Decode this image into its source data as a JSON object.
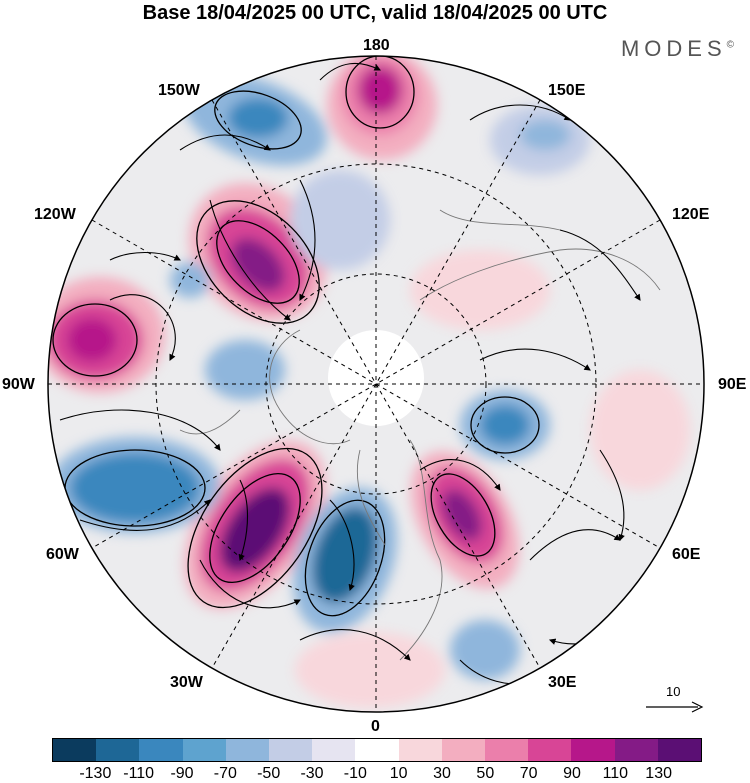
{
  "title": "Base 18/04/2025 00 UTC, valid 18/04/2025 00 UTC",
  "brand": {
    "name": "MODES",
    "mark": "©"
  },
  "longitude_labels": [
    "180",
    "150E",
    "120E",
    "90E",
    "60E",
    "30E",
    "0",
    "30W",
    "60W",
    "90W",
    "120W",
    "150W"
  ],
  "vector_reference": "10",
  "colorbar": {
    "colors": [
      "#0b3b5e",
      "#1e6796",
      "#3a87be",
      "#5ea3cf",
      "#8fb6dc",
      "#c3cde6",
      "#e6e4f1",
      "#ffffff",
      "#f8d7dc",
      "#f3aec0",
      "#eb7fab",
      "#d84596",
      "#b6178a",
      "#841b86",
      "#5b0f74"
    ],
    "tick_labels": [
      "-130",
      "-110",
      "-90",
      "-70",
      "-50",
      "-30",
      "-10",
      "10",
      "30",
      "50",
      "70",
      "90",
      "110",
      "130"
    ]
  },
  "map": {
    "projection": "north-polar-stereographic",
    "anomalies": [
      {
        "kind": "positive",
        "color": "#b6178a"
      },
      {
        "kind": "negative",
        "color": "#3a87be"
      }
    ]
  }
}
